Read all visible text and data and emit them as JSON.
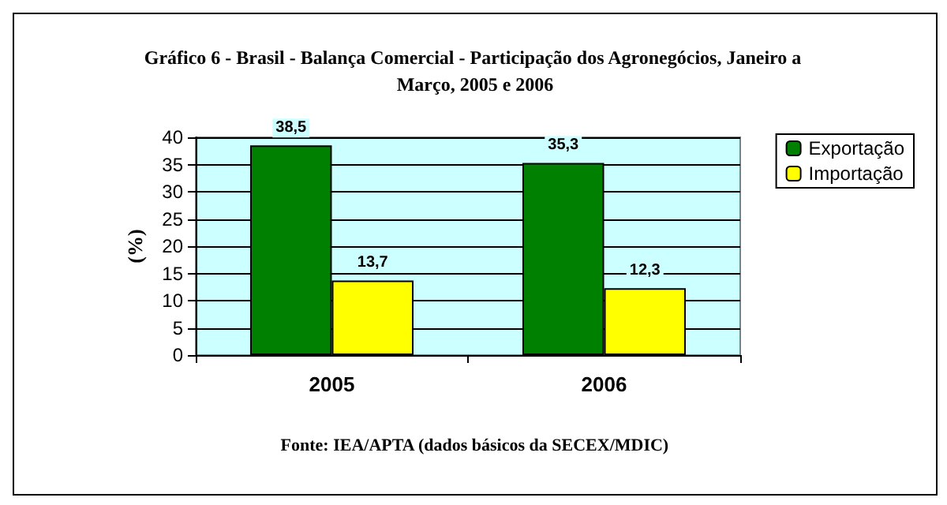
{
  "chart_data": {
    "type": "bar",
    "title": "Gráfico 6 - Brasil - Balança Comercial - Participação dos Agronegócios, Janeiro a Março, 2005 e 2006",
    "ylabel": "(%)",
    "annotations": [
      "Fonte: IEA/APTA (dados básicos da SECEX/MDIC)"
    ],
    "categories": [
      "2005",
      "2006"
    ],
    "series": [
      {
        "name": "Exportação",
        "color": "#008000",
        "values": [
          38.5,
          35.3
        ],
        "value_labels": [
          "38,5",
          "35,3"
        ]
      },
      {
        "name": "Importação",
        "color": "#ffff00",
        "values": [
          13.7,
          12.3
        ],
        "value_labels": [
          "13,7",
          "12,3"
        ]
      }
    ],
    "ylim": [
      0,
      40
    ],
    "yticks": [
      0,
      5,
      10,
      15,
      20,
      25,
      30,
      35,
      40
    ],
    "grid": "y",
    "legend": "top right"
  }
}
